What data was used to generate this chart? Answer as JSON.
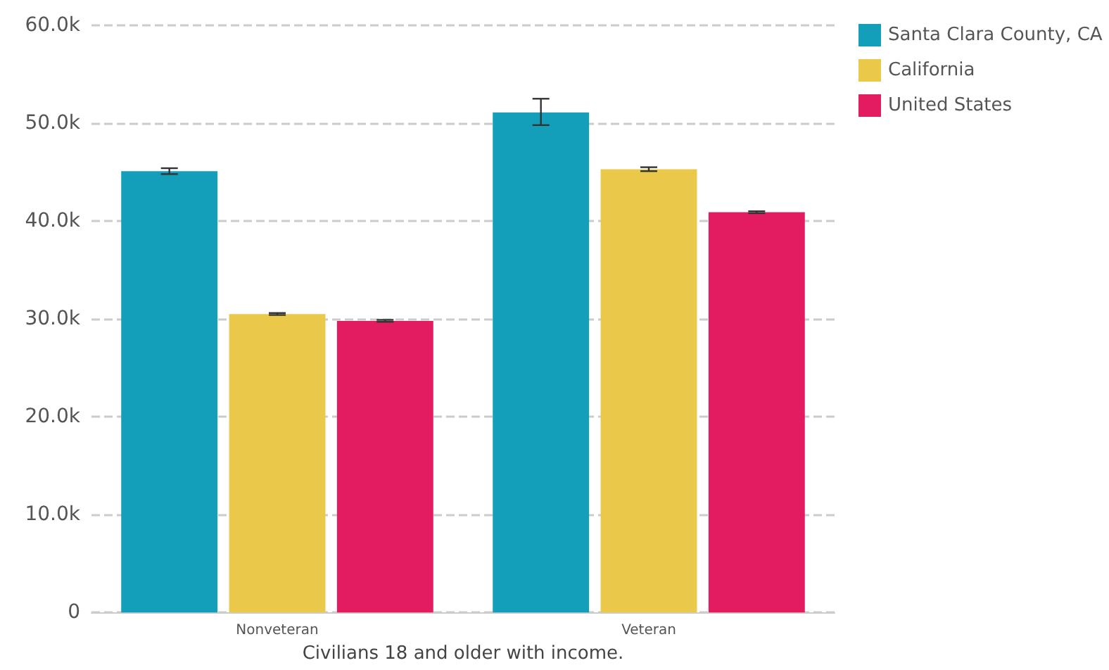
{
  "chart_data": {
    "type": "bar",
    "xlabel": "Civilians 18 and older with income.",
    "categories": [
      "Nonveteran",
      "Veteran"
    ],
    "series": [
      {
        "name": "Santa Clara County, CA",
        "color": "#139fba",
        "values": [
          45100,
          51100
        ],
        "errors": [
          300,
          [
            49800,
            52500
          ]
        ]
      },
      {
        "name": "California",
        "color": "#eac94a",
        "values": [
          30500,
          45300
        ],
        "errors": [
          100,
          200
        ]
      },
      {
        "name": "United States",
        "color": "#e31c61",
        "values": [
          29800,
          40900
        ],
        "errors": [
          100,
          100
        ]
      }
    ],
    "ylim": [
      0,
      60000
    ],
    "yticks": [
      {
        "value": 0,
        "label": "0"
      },
      {
        "value": 10000,
        "label": "10.0k"
      },
      {
        "value": 20000,
        "label": "20.0k"
      },
      {
        "value": 30000,
        "label": "30.0k"
      },
      {
        "value": 40000,
        "label": "40.0k"
      },
      {
        "value": 50000,
        "label": "50.0k"
      },
      {
        "value": 60000,
        "label": "60.0k"
      }
    ],
    "grid": "y",
    "legend": "top right"
  }
}
